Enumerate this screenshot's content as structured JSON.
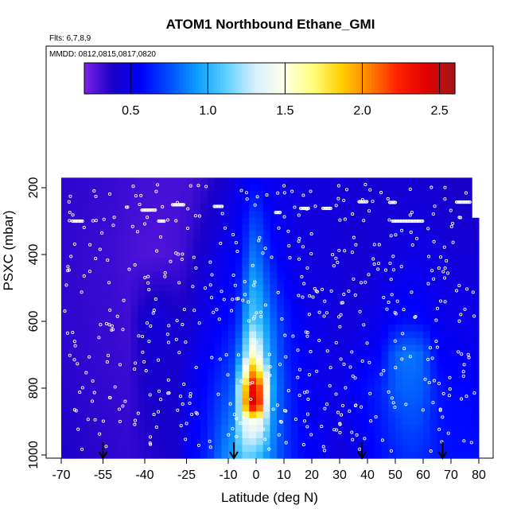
{
  "chart_data": {
    "type": "heatmap",
    "title": "ATOM1 Northbound Ethane_GMI",
    "flights_label": "Flts: 6,7,8,9",
    "mmdd_label": "MMDD: 0812,0815,0817,0820",
    "xlabel": "Latitude (deg N)",
    "ylabel": "PSXC (mbar)",
    "xlim": [
      -70,
      80
    ],
    "ylim": [
      1000,
      150
    ],
    "x_tick_labels": [
      "-70",
      "-55",
      "-40",
      "-25",
      "-10",
      "0",
      "10",
      "20",
      "30",
      "40",
      "50",
      "60",
      "70",
      "80"
    ],
    "x_ticks": [
      -70,
      -55,
      -40,
      -25,
      -10,
      0,
      10,
      20,
      30,
      40,
      50,
      60,
      70,
      80
    ],
    "y_ticks": [
      200,
      400,
      600,
      800,
      1000
    ],
    "y_tick_labels": [
      "200",
      "400",
      "600",
      "800",
      "1000"
    ],
    "colorbar": {
      "range": [
        0.2,
        2.6
      ],
      "ticks": [
        0.5,
        1.0,
        1.5,
        2.0,
        2.5
      ],
      "tick_labels": [
        "0.5",
        "1.0",
        "1.5",
        "2.0",
        "2.5"
      ],
      "colors": [
        "#7a22e6",
        "#1a00c8",
        "#0000ff",
        "#0050ff",
        "#10a0ff",
        "#60d0ff",
        "#d8f0ff",
        "#ffffe8",
        "#ffff80",
        "#ffd000",
        "#ff8000",
        "#ff2000",
        "#e00000",
        "#a01818"
      ]
    },
    "heatmap_columns": [
      {
        "lat": -68,
        "profile": [
          [
            170,
            0.35
          ],
          [
            400,
            0.34
          ],
          [
            700,
            0.35
          ],
          [
            1000,
            0.38
          ]
        ]
      },
      {
        "lat": -60,
        "profile": [
          [
            170,
            0.34
          ],
          [
            400,
            0.33
          ],
          [
            700,
            0.34
          ],
          [
            1000,
            0.36
          ]
        ]
      },
      {
        "lat": -52,
        "profile": [
          [
            170,
            0.33
          ],
          [
            400,
            0.32
          ],
          [
            700,
            0.33
          ],
          [
            1000,
            0.35
          ]
        ]
      },
      {
        "lat": -46,
        "profile": [
          [
            170,
            0.32
          ],
          [
            400,
            0.3
          ],
          [
            700,
            0.32
          ],
          [
            1000,
            0.34
          ]
        ]
      },
      {
        "lat": -40,
        "profile": [
          [
            170,
            0.31
          ],
          [
            400,
            0.28
          ],
          [
            600,
            0.42
          ],
          [
            700,
            0.4
          ],
          [
            1000,
            0.36
          ]
        ]
      },
      {
        "lat": -34,
        "profile": [
          [
            170,
            0.3
          ],
          [
            400,
            0.28
          ],
          [
            600,
            0.45
          ],
          [
            700,
            0.42
          ],
          [
            1000,
            0.38
          ]
        ]
      },
      {
        "lat": -28,
        "profile": [
          [
            170,
            0.3
          ],
          [
            400,
            0.3
          ],
          [
            600,
            0.4
          ],
          [
            800,
            0.4
          ],
          [
            1000,
            0.4
          ]
        ]
      },
      {
        "lat": -24,
        "profile": [
          [
            170,
            0.3
          ],
          [
            400,
            0.34
          ],
          [
            600,
            0.42
          ],
          [
            800,
            0.5
          ],
          [
            1000,
            0.55
          ]
        ]
      },
      {
        "lat": -20,
        "profile": [
          [
            170,
            0.32
          ],
          [
            400,
            0.4
          ],
          [
            600,
            0.48
          ],
          [
            800,
            0.55
          ],
          [
            1000,
            0.6
          ]
        ]
      },
      {
        "lat": -16,
        "profile": [
          [
            170,
            0.36
          ],
          [
            400,
            0.45
          ],
          [
            600,
            0.52
          ],
          [
            800,
            0.62
          ],
          [
            1000,
            0.7
          ]
        ]
      },
      {
        "lat": -12,
        "profile": [
          [
            170,
            0.4
          ],
          [
            400,
            0.5
          ],
          [
            600,
            0.56
          ],
          [
            800,
            0.7
          ],
          [
            1000,
            0.85
          ]
        ]
      },
      {
        "lat": -8,
        "profile": [
          [
            170,
            0.45
          ],
          [
            400,
            0.55
          ],
          [
            600,
            0.62
          ],
          [
            800,
            0.8
          ],
          [
            1000,
            0.95
          ]
        ]
      },
      {
        "lat": -5,
        "profile": [
          [
            170,
            0.5
          ],
          [
            400,
            0.6
          ],
          [
            600,
            0.75
          ],
          [
            700,
            0.95
          ],
          [
            800,
            1.5
          ],
          [
            900,
            1.4
          ],
          [
            1000,
            1.1
          ]
        ]
      },
      {
        "lat": -3,
        "profile": [
          [
            170,
            0.52
          ],
          [
            400,
            0.75
          ],
          [
            600,
            1.05
          ],
          [
            700,
            1.35
          ],
          [
            800,
            2.1
          ],
          [
            850,
            2.3
          ],
          [
            900,
            1.4
          ],
          [
            1000,
            1.15
          ]
        ]
      },
      {
        "lat": -1,
        "profile": [
          [
            170,
            0.55
          ],
          [
            400,
            0.85
          ],
          [
            600,
            1.1
          ],
          [
            700,
            1.6
          ],
          [
            800,
            2.4
          ],
          [
            850,
            2.45
          ],
          [
            900,
            1.5
          ],
          [
            1000,
            1.1
          ]
        ]
      },
      {
        "lat": 1,
        "profile": [
          [
            170,
            0.55
          ],
          [
            400,
            0.8
          ],
          [
            600,
            1.05
          ],
          [
            700,
            1.4
          ],
          [
            800,
            2.2
          ],
          [
            850,
            2.3
          ],
          [
            900,
            1.45
          ],
          [
            1000,
            1.05
          ]
        ]
      },
      {
        "lat": 3,
        "profile": [
          [
            170,
            0.52
          ],
          [
            400,
            0.7
          ],
          [
            600,
            0.95
          ],
          [
            700,
            1.1
          ],
          [
            800,
            1.7
          ],
          [
            900,
            1.3
          ],
          [
            1000,
            0.95
          ]
        ]
      },
      {
        "lat": 6,
        "profile": [
          [
            170,
            0.5
          ],
          [
            400,
            0.6
          ],
          [
            600,
            0.8
          ],
          [
            800,
            0.95
          ],
          [
            1000,
            0.85
          ]
        ]
      },
      {
        "lat": 10,
        "profile": [
          [
            170,
            0.48
          ],
          [
            400,
            0.52
          ],
          [
            600,
            0.65
          ],
          [
            800,
            0.7
          ],
          [
            1000,
            0.7
          ]
        ]
      },
      {
        "lat": 15,
        "profile": [
          [
            170,
            0.46
          ],
          [
            400,
            0.48
          ],
          [
            600,
            0.55
          ],
          [
            800,
            0.58
          ],
          [
            1000,
            0.6
          ]
        ]
      },
      {
        "lat": 20,
        "profile": [
          [
            170,
            0.45
          ],
          [
            400,
            0.45
          ],
          [
            600,
            0.5
          ],
          [
            800,
            0.52
          ],
          [
            1000,
            0.55
          ]
        ]
      },
      {
        "lat": 25,
        "profile": [
          [
            170,
            0.45
          ],
          [
            400,
            0.45
          ],
          [
            600,
            0.48
          ],
          [
            800,
            0.5
          ],
          [
            1000,
            0.52
          ]
        ]
      },
      {
        "lat": 30,
        "profile": [
          [
            170,
            0.44
          ],
          [
            400,
            0.44
          ],
          [
            600,
            0.45
          ],
          [
            800,
            0.48
          ],
          [
            1000,
            0.45
          ]
        ]
      },
      {
        "lat": 35,
        "profile": [
          [
            170,
            0.43
          ],
          [
            400,
            0.42
          ],
          [
            600,
            0.45
          ],
          [
            800,
            0.55
          ],
          [
            1000,
            0.5
          ]
        ]
      },
      {
        "lat": 40,
        "profile": [
          [
            170,
            0.42
          ],
          [
            400,
            0.42
          ],
          [
            600,
            0.48
          ],
          [
            800,
            0.6
          ],
          [
            1000,
            0.55
          ]
        ]
      },
      {
        "lat": 45,
        "profile": [
          [
            170,
            0.42
          ],
          [
            400,
            0.44
          ],
          [
            600,
            0.52
          ],
          [
            800,
            0.65
          ],
          [
            1000,
            0.6
          ]
        ]
      },
      {
        "lat": 50,
        "profile": [
          [
            170,
            0.42
          ],
          [
            400,
            0.46
          ],
          [
            600,
            0.58
          ],
          [
            700,
            0.8
          ],
          [
            800,
            0.78
          ],
          [
            900,
            0.7
          ],
          [
            1000,
            0.65
          ]
        ]
      },
      {
        "lat": 55,
        "profile": [
          [
            170,
            0.42
          ],
          [
            400,
            0.48
          ],
          [
            600,
            0.6
          ],
          [
            700,
            0.85
          ],
          [
            800,
            0.8
          ],
          [
            900,
            0.75
          ],
          [
            1000,
            0.68
          ]
        ]
      },
      {
        "lat": 60,
        "profile": [
          [
            170,
            0.42
          ],
          [
            400,
            0.48
          ],
          [
            600,
            0.58
          ],
          [
            700,
            0.8
          ],
          [
            800,
            0.78
          ],
          [
            900,
            0.72
          ],
          [
            1000,
            0.66
          ]
        ]
      },
      {
        "lat": 65,
        "profile": [
          [
            170,
            0.4
          ],
          [
            400,
            0.46
          ],
          [
            600,
            0.52
          ],
          [
            800,
            0.62
          ],
          [
            1000,
            0.62
          ]
        ]
      },
      {
        "lat": 70,
        "profile": [
          [
            170,
            0.38
          ],
          [
            400,
            0.44
          ],
          [
            600,
            0.5
          ],
          [
            800,
            0.58
          ],
          [
            1000,
            0.6
          ]
        ]
      },
      {
        "lat": 75,
        "profile": [
          [
            170,
            0.38
          ],
          [
            400,
            0.44
          ],
          [
            600,
            0.5
          ],
          [
            800,
            0.58
          ],
          [
            1000,
            0.6
          ]
        ]
      },
      {
        "lat": 80,
        "profile": [
          [
            300,
            0.4
          ],
          [
            600,
            0.5
          ],
          [
            1000,
            0.6
          ]
        ]
      }
    ],
    "sample_points": {
      "lat_min": -69,
      "lat_max": 79,
      "p_min": 190,
      "p_max": 990,
      "count": 520
    },
    "arrow_lats": [
      -55,
      -8,
      38,
      67
    ]
  }
}
